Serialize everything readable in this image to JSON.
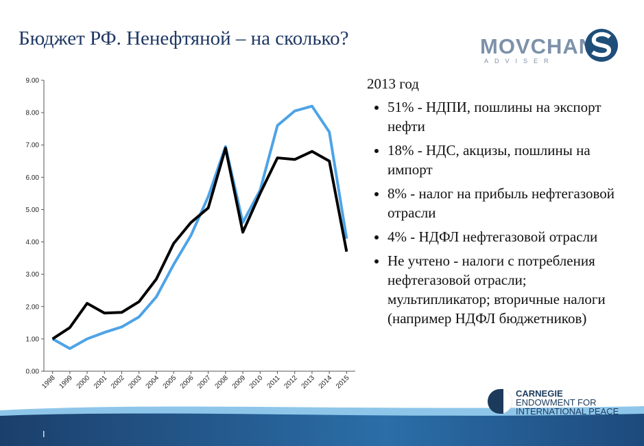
{
  "slide": {
    "title": "Бюджет РФ. Ненефтяной – на сколько?",
    "heading": "2013 год",
    "bullets": [
      "51% - НДПИ, пошлины на экспорт нефти",
      "18% - НДС, акцизы, пошлины на импорт",
      "8% - налог на прибыль нефтегазовой отрасли",
      "4% - НДФЛ нефтегазовой отрасли",
      "Не учтено - налоги с потребления нефтегазовой отрасли; мультипликатор; вторичные налоги (например НДФЛ бюджетников)"
    ],
    "logo_top": [
      "MOVCHAN",
      "ADVISER"
    ],
    "logo_bottom": [
      "CARNEGIE",
      "ENDOWMENT FOR",
      "INTERNATIONAL PEACE"
    ],
    "page_marker": "I"
  },
  "chart_data": {
    "type": "line",
    "categories": [
      "1998",
      "1999",
      "2000",
      "2001",
      "2002",
      "2003",
      "2004",
      "2005",
      "2006",
      "2007",
      "2008",
      "2009",
      "2010",
      "2011",
      "2012",
      "2013",
      "2014",
      "2015"
    ],
    "series": [
      {
        "color": "#4ea3e6",
        "values": [
          1.0,
          0.7,
          1.0,
          1.2,
          1.37,
          1.68,
          2.3,
          3.3,
          4.2,
          5.4,
          6.95,
          4.6,
          5.6,
          7.6,
          8.05,
          8.2,
          7.4,
          4.1
        ]
      },
      {
        "color": "#000000",
        "values": [
          1.0,
          1.35,
          2.1,
          1.8,
          1.82,
          2.15,
          2.85,
          3.95,
          4.6,
          5.05,
          6.9,
          4.3,
          5.5,
          6.6,
          6.55,
          6.8,
          6.5,
          3.7
        ]
      }
    ],
    "ylim": [
      0,
      9
    ],
    "yticks": [
      {
        "value": 0,
        "label": "0.00"
      },
      {
        "value": 1,
        "label": "1.00"
      },
      {
        "value": 2,
        "label": "2.00"
      },
      {
        "value": 3,
        "label": "3.00"
      },
      {
        "value": 4,
        "label": "4.00"
      },
      {
        "value": 5,
        "label": "5.00"
      },
      {
        "value": 6,
        "label": "6.00"
      },
      {
        "value": 7,
        "label": "7.00"
      },
      {
        "value": 8,
        "label": "8.00"
      },
      {
        "value": 9,
        "label": "9.00"
      }
    ]
  }
}
